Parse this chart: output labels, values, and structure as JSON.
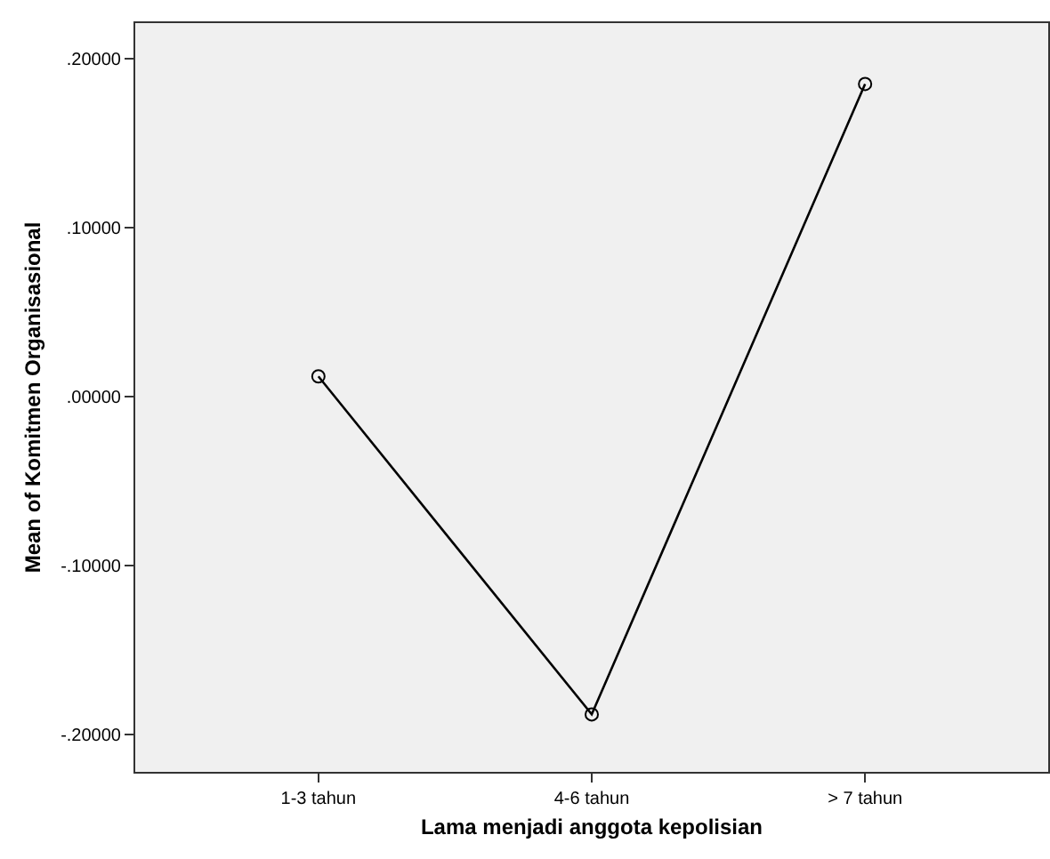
{
  "chart_data": {
    "type": "line",
    "xlabel": "Lama menjadi anggota kepolisian",
    "ylabel": "Mean of Komitmen Organisasional",
    "categories": [
      "1-3 tahun",
      "4-6 tahun",
      "> 7 tahun"
    ],
    "series": [
      {
        "color": "#000000",
        "values": [
          0.012,
          -0.188,
          0.185
        ]
      }
    ],
    "ylim": [
      -0.222,
      0.221
    ],
    "yticks": [
      {
        "value": -0.2,
        "label": "-.20000"
      },
      {
        "value": -0.1,
        "label": "-.10000"
      },
      {
        "value": 0,
        "label": ".00000"
      },
      {
        "value": 0.1,
        "label": ".10000"
      },
      {
        "value": 0.2,
        "label": ".20000"
      }
    ],
    "grid": false,
    "marker": "circle",
    "line_style": "solid"
  }
}
